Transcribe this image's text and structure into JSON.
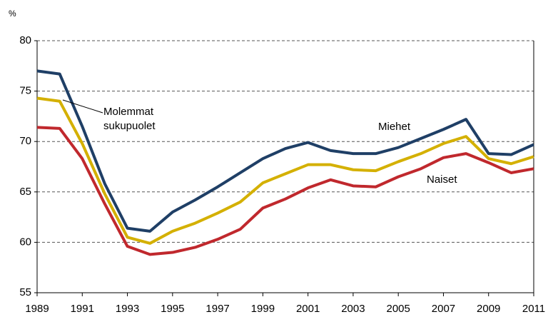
{
  "chart_data": {
    "type": "line",
    "y_axis_label": "%",
    "x": [
      1989,
      1990,
      1991,
      1992,
      1993,
      1994,
      1995,
      1996,
      1997,
      1998,
      1999,
      2000,
      2001,
      2002,
      2003,
      2004,
      2005,
      2006,
      2007,
      2008,
      2009,
      2010,
      2011
    ],
    "series": [
      {
        "name": "Miehet",
        "color": "#1f3f66",
        "values": [
          77.0,
          76.7,
          71.5,
          65.8,
          61.4,
          61.1,
          63.0,
          64.2,
          65.5,
          66.9,
          68.3,
          69.3,
          69.9,
          69.1,
          68.8,
          68.8,
          69.4,
          70.3,
          71.2,
          72.2,
          68.8,
          68.7,
          69.7
        ]
      },
      {
        "name": "Molemmat sukupuolet",
        "color": "#d4b000",
        "values": [
          74.3,
          74.0,
          69.8,
          64.8,
          60.5,
          59.9,
          61.1,
          61.9,
          62.9,
          64.0,
          65.9,
          66.8,
          67.7,
          67.7,
          67.2,
          67.1,
          68.0,
          68.8,
          69.8,
          70.5,
          68.3,
          67.8,
          68.5
        ]
      },
      {
        "name": "Naiset",
        "color": "#c0282d",
        "values": [
          71.4,
          71.3,
          68.3,
          63.8,
          59.6,
          58.8,
          59.0,
          59.5,
          60.3,
          61.3,
          63.4,
          64.3,
          65.4,
          66.2,
          65.6,
          65.5,
          66.5,
          67.3,
          68.4,
          68.8,
          67.9,
          66.9,
          67.3
        ]
      }
    ],
    "xlim": [
      1989,
      2011
    ],
    "xticks": [
      1989,
      1991,
      1993,
      1995,
      1997,
      1999,
      2001,
      2003,
      2005,
      2007,
      2009,
      2011
    ],
    "ylim": [
      55,
      80
    ],
    "yticks": [
      55,
      60,
      65,
      70,
      75,
      80
    ],
    "grid": true
  }
}
